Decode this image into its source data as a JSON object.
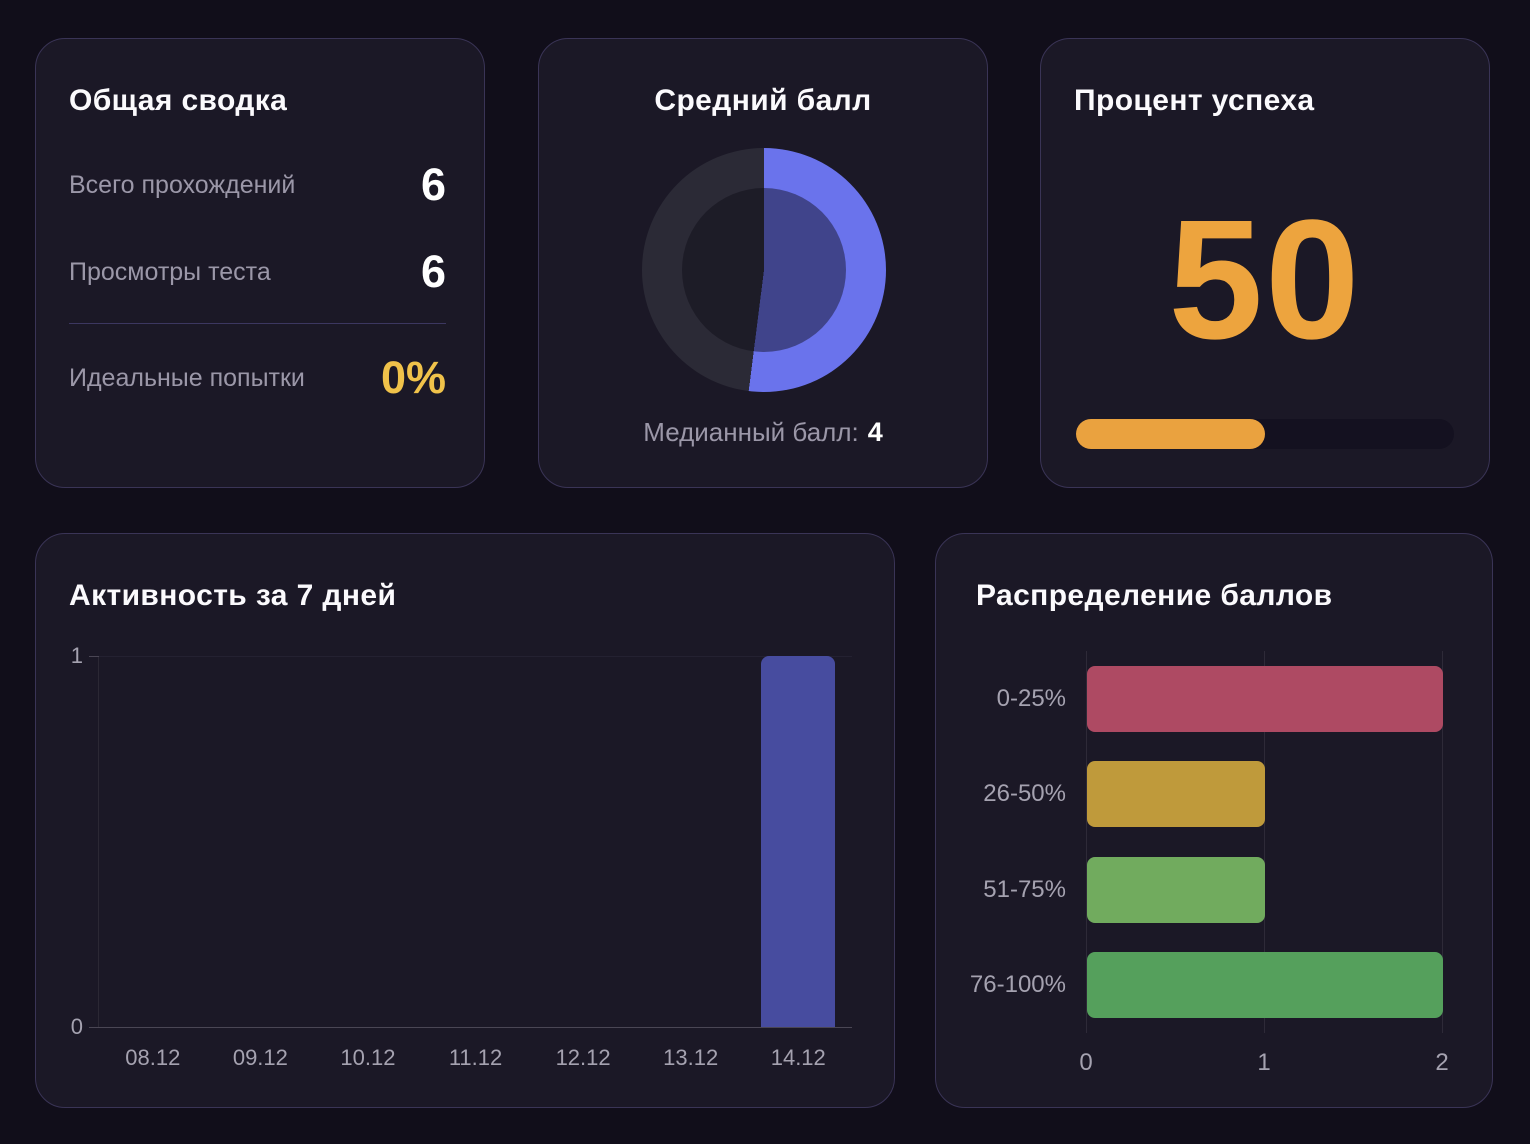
{
  "summary": {
    "title": "Общая сводка",
    "rows": [
      {
        "label": "Всего прохождений",
        "value": "6"
      },
      {
        "label": "Просмотры теста",
        "value": "6"
      }
    ],
    "highlight": {
      "label": "Идеальные попытки",
      "value": "0%"
    }
  },
  "average_score": {
    "title": "Средний балл",
    "caption_label": "Медианный балл:",
    "caption_value": "4"
  },
  "success_rate": {
    "title": "Процент успеха",
    "value": "50",
    "progress_percent": 50
  },
  "activity": {
    "title": "Активность за 7 дней"
  },
  "distribution": {
    "title": "Распределение баллов"
  },
  "chart_data": [
    {
      "id": "activity",
      "type": "bar",
      "title": "Активность за 7 дней",
      "categories": [
        "08.12",
        "09.12",
        "10.12",
        "11.12",
        "12.12",
        "13.12",
        "14.12"
      ],
      "values": [
        0,
        0,
        0,
        0,
        0,
        0,
        1
      ],
      "ylim": [
        0,
        1
      ],
      "yticks": [
        0,
        1
      ],
      "bar_color": "#474c9f",
      "grid": true,
      "legend": false,
      "xlabel": "",
      "ylabel": ""
    },
    {
      "id": "distribution",
      "type": "bar",
      "orientation": "horizontal",
      "title": "Распределение баллов",
      "categories": [
        "0-25%",
        "26-50%",
        "51-75%",
        "76-100%"
      ],
      "values": [
        2,
        1,
        1,
        2
      ],
      "bar_colors": [
        "#ae4a63",
        "#bf9a3b",
        "#71ab5e",
        "#55a05c"
      ],
      "xlim": [
        0,
        2
      ],
      "xticks": [
        0,
        1,
        2
      ],
      "grid": true,
      "legend": false
    },
    {
      "id": "average-score-donut",
      "type": "pie",
      "title": "Средний балл",
      "values": [
        52,
        48
      ],
      "colors": [
        "#6a73ec",
        "#2b2a36"
      ]
    }
  ],
  "colors": {
    "accent_orange": "#eda43e",
    "accent_yellow": "#f0c24a",
    "page_bg": "#110e1a",
    "card_bg": "#1b1826",
    "card_border": "#3a3456",
    "text_primary": "#fbfafd",
    "text_muted": "#9b97a8",
    "axis_text": "#a5a2b0"
  }
}
